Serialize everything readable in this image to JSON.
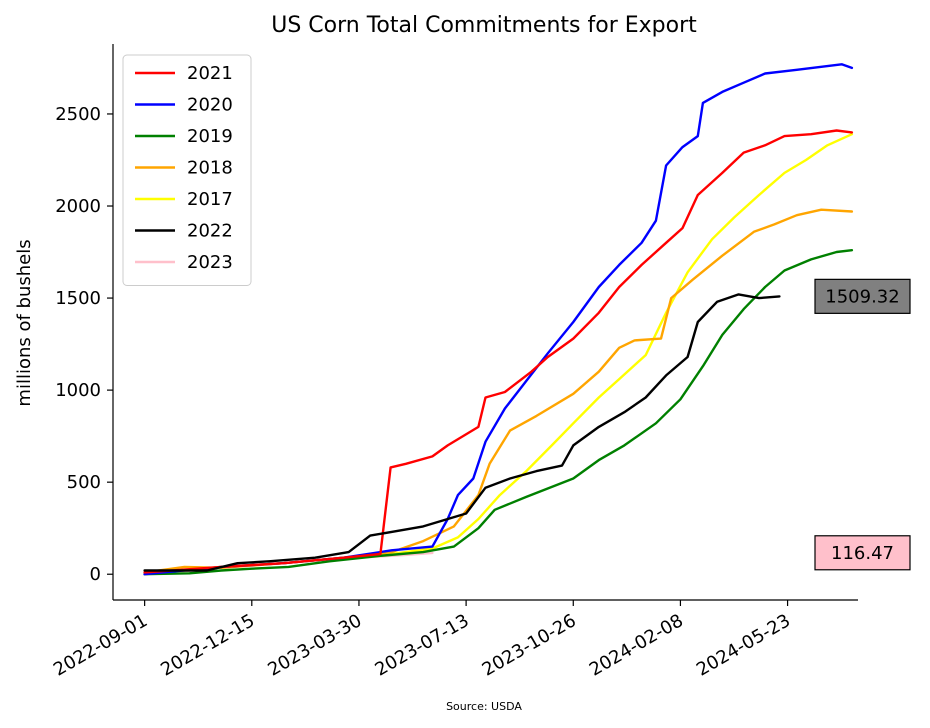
{
  "chart_data": {
    "type": "line",
    "title": "US Corn Total Commitments for Export",
    "xlabel": "",
    "ylabel": "millions of bushels",
    "source": "Source: USDA",
    "xlim": [
      "2022-08-01",
      "2024-07-31"
    ],
    "ylim": [
      -140,
      2880
    ],
    "yticks": [
      0,
      500,
      1000,
      1500,
      2000,
      2500
    ],
    "xticks": [
      "2022-09-01",
      "2022-12-15",
      "2023-03-30",
      "2023-07-13",
      "2023-10-26",
      "2024-02-08",
      "2024-05-23"
    ],
    "legend_position": "upper-left",
    "grid": false,
    "series": [
      {
        "name": "2021",
        "color": "#ff0000",
        "points": [
          [
            "2022-09-01",
            10
          ],
          [
            "2022-11-15",
            40
          ],
          [
            "2023-01-15",
            60
          ],
          [
            "2023-03-15",
            90
          ],
          [
            "2023-04-20",
            110
          ],
          [
            "2023-04-30",
            580
          ],
          [
            "2023-05-15",
            600
          ],
          [
            "2023-06-10",
            640
          ],
          [
            "2023-06-25",
            700
          ],
          [
            "2023-07-25",
            800
          ],
          [
            "2023-08-01",
            960
          ],
          [
            "2023-08-20",
            990
          ],
          [
            "2023-09-15",
            1100
          ],
          [
            "2023-10-01",
            1180
          ],
          [
            "2023-10-26",
            1280
          ],
          [
            "2023-11-20",
            1420
          ],
          [
            "2023-12-10",
            1560
          ],
          [
            "2024-01-01",
            1680
          ],
          [
            "2024-01-25",
            1800
          ],
          [
            "2024-02-10",
            1880
          ],
          [
            "2024-02-25",
            2060
          ],
          [
            "2024-03-20",
            2180
          ],
          [
            "2024-04-10",
            2290
          ],
          [
            "2024-05-01",
            2330
          ],
          [
            "2024-05-20",
            2380
          ],
          [
            "2024-06-15",
            2390
          ],
          [
            "2024-07-10",
            2410
          ],
          [
            "2024-07-25",
            2400
          ]
        ]
      },
      {
        "name": "2020",
        "color": "#0000ff",
        "points": [
          [
            "2022-09-01",
            0
          ],
          [
            "2022-11-15",
            40
          ],
          [
            "2023-01-15",
            60
          ],
          [
            "2023-03-15",
            90
          ],
          [
            "2023-05-01",
            130
          ],
          [
            "2023-06-10",
            150
          ],
          [
            "2023-06-25",
            300
          ],
          [
            "2023-07-05",
            430
          ],
          [
            "2023-07-20",
            520
          ],
          [
            "2023-08-01",
            720
          ],
          [
            "2023-08-20",
            900
          ],
          [
            "2023-09-10",
            1050
          ],
          [
            "2023-10-01",
            1200
          ],
          [
            "2023-10-26",
            1370
          ],
          [
            "2023-11-20",
            1560
          ],
          [
            "2023-12-10",
            1680
          ],
          [
            "2024-01-01",
            1800
          ],
          [
            "2024-01-15",
            1920
          ],
          [
            "2024-01-25",
            2220
          ],
          [
            "2024-02-10",
            2320
          ],
          [
            "2024-02-25",
            2380
          ],
          [
            "2024-03-01",
            2560
          ],
          [
            "2024-03-20",
            2620
          ],
          [
            "2024-04-10",
            2670
          ],
          [
            "2024-05-01",
            2720
          ],
          [
            "2024-06-01",
            2740
          ],
          [
            "2024-07-01",
            2760
          ],
          [
            "2024-07-15",
            2770
          ],
          [
            "2024-07-25",
            2750
          ]
        ]
      },
      {
        "name": "2019",
        "color": "#008000",
        "points": [
          [
            "2022-09-01",
            0
          ],
          [
            "2022-10-15",
            5
          ],
          [
            "2022-11-15",
            20
          ],
          [
            "2022-12-15",
            30
          ],
          [
            "2023-01-20",
            40
          ],
          [
            "2023-03-01",
            70
          ],
          [
            "2023-04-20",
            100
          ],
          [
            "2023-06-01",
            120
          ],
          [
            "2023-07-01",
            150
          ],
          [
            "2023-07-25",
            250
          ],
          [
            "2023-08-10",
            350
          ],
          [
            "2023-09-10",
            420
          ],
          [
            "2023-10-26",
            520
          ],
          [
            "2023-11-20",
            620
          ],
          [
            "2023-12-15",
            700
          ],
          [
            "2024-01-15",
            820
          ],
          [
            "2024-02-08",
            950
          ],
          [
            "2024-03-01",
            1130
          ],
          [
            "2024-03-20",
            1300
          ],
          [
            "2024-04-10",
            1440
          ],
          [
            "2024-05-01",
            1560
          ],
          [
            "2024-05-20",
            1650
          ],
          [
            "2024-06-15",
            1710
          ],
          [
            "2024-07-10",
            1750
          ],
          [
            "2024-07-25",
            1760
          ]
        ]
      },
      {
        "name": "2018",
        "color": "#ffa500",
        "points": [
          [
            "2022-09-01",
            10
          ],
          [
            "2022-10-10",
            40
          ],
          [
            "2022-11-15",
            35
          ],
          [
            "2023-01-15",
            60
          ],
          [
            "2023-03-15",
            90
          ],
          [
            "2023-05-01",
            120
          ],
          [
            "2023-06-01",
            180
          ],
          [
            "2023-07-01",
            260
          ],
          [
            "2023-07-25",
            430
          ],
          [
            "2023-08-05",
            600
          ],
          [
            "2023-08-25",
            780
          ],
          [
            "2023-09-20",
            860
          ],
          [
            "2023-10-26",
            980
          ],
          [
            "2023-11-20",
            1100
          ],
          [
            "2023-12-10",
            1230
          ],
          [
            "2023-12-25",
            1270
          ],
          [
            "2024-01-20",
            1280
          ],
          [
            "2024-01-30",
            1500
          ],
          [
            "2024-02-20",
            1600
          ],
          [
            "2024-03-20",
            1730
          ],
          [
            "2024-04-20",
            1860
          ],
          [
            "2024-05-10",
            1900
          ],
          [
            "2024-06-01",
            1950
          ],
          [
            "2024-06-25",
            1980
          ],
          [
            "2024-07-25",
            1970
          ]
        ]
      },
      {
        "name": "2017",
        "color": "#ffff00",
        "points": [
          [
            "2022-09-01",
            5
          ],
          [
            "2022-11-15",
            40
          ],
          [
            "2023-01-15",
            60
          ],
          [
            "2023-03-15",
            90
          ],
          [
            "2023-05-01",
            110
          ],
          [
            "2023-06-10",
            140
          ],
          [
            "2023-07-05",
            200
          ],
          [
            "2023-07-25",
            300
          ],
          [
            "2023-08-15",
            430
          ],
          [
            "2023-09-10",
            560
          ],
          [
            "2023-10-05",
            700
          ],
          [
            "2023-10-26",
            820
          ],
          [
            "2023-11-20",
            960
          ],
          [
            "2023-12-10",
            1060
          ],
          [
            "2024-01-05",
            1190
          ],
          [
            "2024-01-25",
            1420
          ],
          [
            "2024-02-15",
            1640
          ],
          [
            "2024-03-10",
            1820
          ],
          [
            "2024-04-01",
            1940
          ],
          [
            "2024-04-25",
            2060
          ],
          [
            "2024-05-20",
            2180
          ],
          [
            "2024-06-10",
            2250
          ],
          [
            "2024-07-01",
            2330
          ],
          [
            "2024-07-25",
            2390
          ]
        ]
      },
      {
        "name": "2022",
        "color": "#000000",
        "points": [
          [
            "2022-09-01",
            20
          ],
          [
            "2022-11-01",
            20
          ],
          [
            "2022-12-01",
            60
          ],
          [
            "2023-01-01",
            70
          ],
          [
            "2023-02-15",
            90
          ],
          [
            "2023-03-20",
            120
          ],
          [
            "2023-04-10",
            210
          ],
          [
            "2023-05-01",
            230
          ],
          [
            "2023-06-01",
            260
          ],
          [
            "2023-07-13",
            330
          ],
          [
            "2023-08-01",
            470
          ],
          [
            "2023-08-25",
            520
          ],
          [
            "2023-09-20",
            560
          ],
          [
            "2023-10-15",
            590
          ],
          [
            "2023-10-26",
            700
          ],
          [
            "2023-11-20",
            800
          ],
          [
            "2023-12-15",
            880
          ],
          [
            "2024-01-05",
            960
          ],
          [
            "2024-01-25",
            1080
          ],
          [
            "2024-02-15",
            1180
          ],
          [
            "2024-02-25",
            1370
          ],
          [
            "2024-03-15",
            1480
          ],
          [
            "2024-04-05",
            1520
          ],
          [
            "2024-04-25",
            1500
          ],
          [
            "2024-05-15",
            1509
          ]
        ]
      },
      {
        "name": "2023",
        "color": "#ffc0cb",
        "points": [
          [
            "2022-09-01",
            0
          ],
          [
            "2022-10-15",
            20
          ],
          [
            "2022-11-15",
            40
          ],
          [
            "2022-12-15",
            50
          ],
          [
            "2023-01-15",
            60
          ],
          [
            "2023-02-15",
            75
          ],
          [
            "2023-03-15",
            85
          ],
          [
            "2023-04-15",
            95
          ],
          [
            "2023-05-15",
            105
          ],
          [
            "2023-06-10",
            116
          ]
        ]
      }
    ],
    "annotations": [
      {
        "text": "1509.32",
        "value": 1509.32,
        "background": "#808080"
      },
      {
        "text": "116.47",
        "value": 116.47,
        "background": "#ffc0cb"
      }
    ]
  }
}
